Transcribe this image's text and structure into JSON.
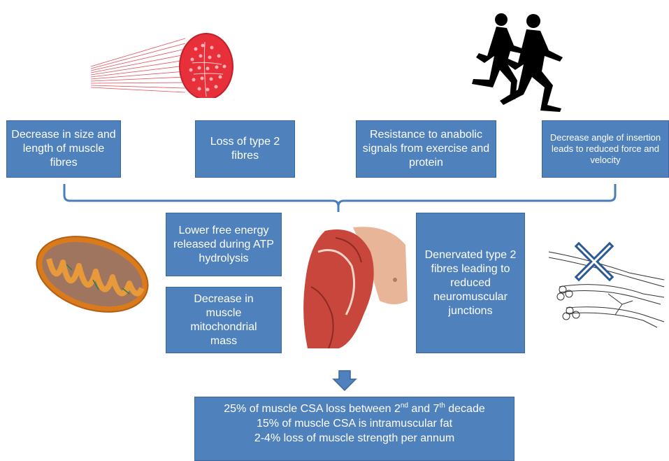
{
  "top_boxes": [
    {
      "text": "Decrease in size and length of muscle fibres"
    },
    {
      "text": "Loss of type 2 fibres"
    },
    {
      "text": "Resistance to anabolic signals from exercise and protein"
    },
    {
      "text": "Decrease angle of insertion leads to reduced force and velocity"
    }
  ],
  "middle_boxes": [
    {
      "text": "Lower free energy released during ATP hydrolysis"
    },
    {
      "text": "Decrease in muscle mitochondrial mass"
    },
    {
      "text": "Denervated type 2 fibres leading to reduced neuromuscular junctions"
    }
  ],
  "summary": {
    "line1_pre": "25% of muscle CSA loss between 2",
    "line1_sup1": "nd",
    "line1_mid": " and 7",
    "line1_sup2": "th",
    "line1_post": " decade",
    "line2": "15% of muscle CSA is intramuscular fat",
    "line3": "2-4% loss of muscle strength per annum"
  },
  "colors": {
    "box_fill": "#4f81bd",
    "box_border": "#3a679b",
    "bracket": "#4a7ebb",
    "text": "#ffffff"
  },
  "icons": [
    "muscle-fibre-bundle-icon",
    "runners-silhouette-icon",
    "mitochondrion-icon",
    "arm-muscle-icon",
    "denervated-nerve-icon",
    "down-arrow-icon"
  ]
}
